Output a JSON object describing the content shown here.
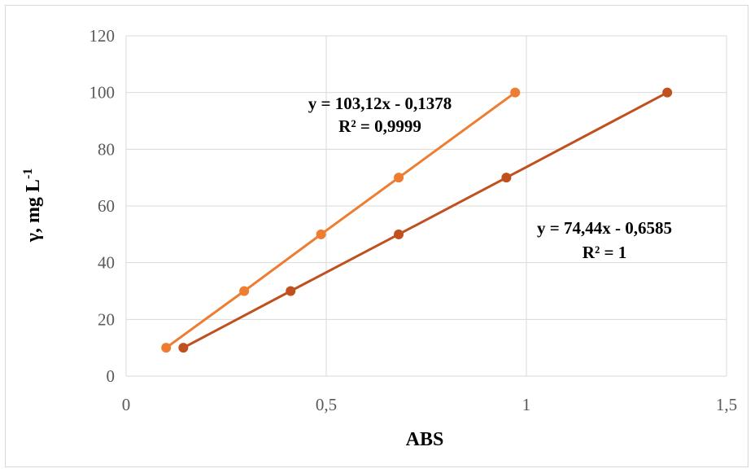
{
  "chart_data": {
    "type": "scatter",
    "xlabel": "ABS",
    "ylabel_main": "γ, mg L",
    "ylabel_sup": "-1",
    "xlim": [
      0,
      1.5
    ],
    "ylim": [
      0,
      120
    ],
    "x_ticks": [
      0,
      0.5,
      1,
      1.5
    ],
    "x_tick_labels": [
      "0",
      "0,5",
      "1",
      "1,5"
    ],
    "y_ticks": [
      0,
      20,
      40,
      60,
      80,
      100,
      120
    ],
    "y_tick_labels": [
      "0",
      "20",
      "40",
      "60",
      "80",
      "100",
      "120"
    ],
    "grid": true,
    "series": [
      {
        "color": "#ED7D31",
        "x": [
          0.1,
          0.295,
          0.487,
          0.681,
          0.972
        ],
        "y": [
          10,
          30,
          50,
          70,
          100
        ],
        "equation": "y = 103,12x - 0,1378",
        "r2": "R² = 0,9999"
      },
      {
        "color": "#C0501E",
        "x": [
          0.143,
          0.411,
          0.681,
          0.95,
          1.352
        ],
        "y": [
          10,
          30,
          50,
          70,
          100
        ],
        "equation": "y = 74,44x - 0,6585",
        "r2": "R² = 1"
      }
    ]
  }
}
